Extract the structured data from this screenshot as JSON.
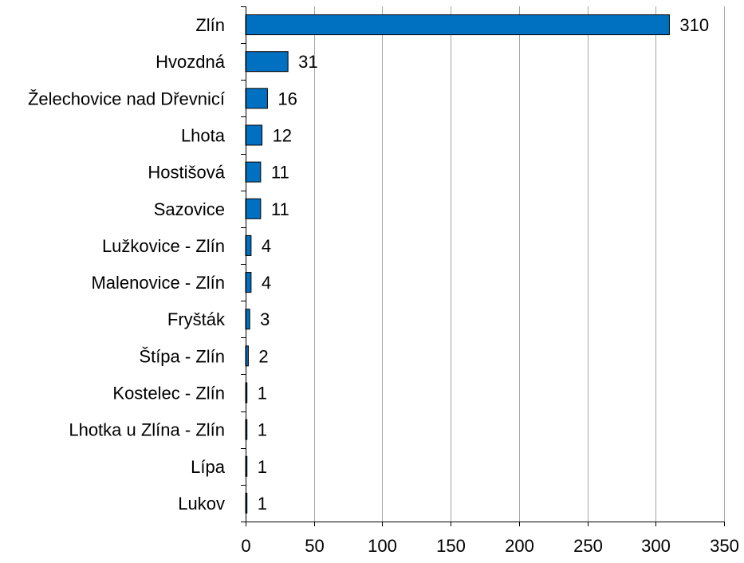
{
  "chart_data": {
    "type": "bar",
    "orientation": "horizontal",
    "title": "",
    "xlabel": "",
    "ylabel": "",
    "categories": [
      "Zlín",
      "Hvozdná",
      "Želechovice nad Dřevnicí",
      "Lhota",
      "Hostišová",
      "Sazovice",
      "Lužkovice - Zlín",
      "Malenovice - Zlín",
      "Fryšták",
      "Štípa - Zlín",
      "Kostelec - Zlín",
      "Lhotka u Zlína - Zlín",
      "Lípa",
      "Lukov"
    ],
    "values": [
      310,
      31,
      16,
      12,
      11,
      11,
      4,
      4,
      3,
      2,
      1,
      1,
      1,
      1
    ],
    "data_labels": [
      "310",
      "31",
      "16",
      "12",
      "11",
      "11",
      "4",
      "4",
      "3",
      "2",
      "1",
      "1",
      "1",
      "1"
    ],
    "xlim": [
      0,
      350
    ],
    "x_ticks": [
      0,
      50,
      100,
      150,
      200,
      250,
      300,
      350
    ],
    "x_tick_labels": [
      "0",
      "50",
      "100",
      "150",
      "200",
      "250",
      "300",
      "350"
    ],
    "grid": "vertical",
    "legend": "none",
    "bar_color": "#0070C0",
    "bar_border_color": "#000000",
    "grid_color": "#A6A6A6",
    "axis_color": "#000000"
  }
}
